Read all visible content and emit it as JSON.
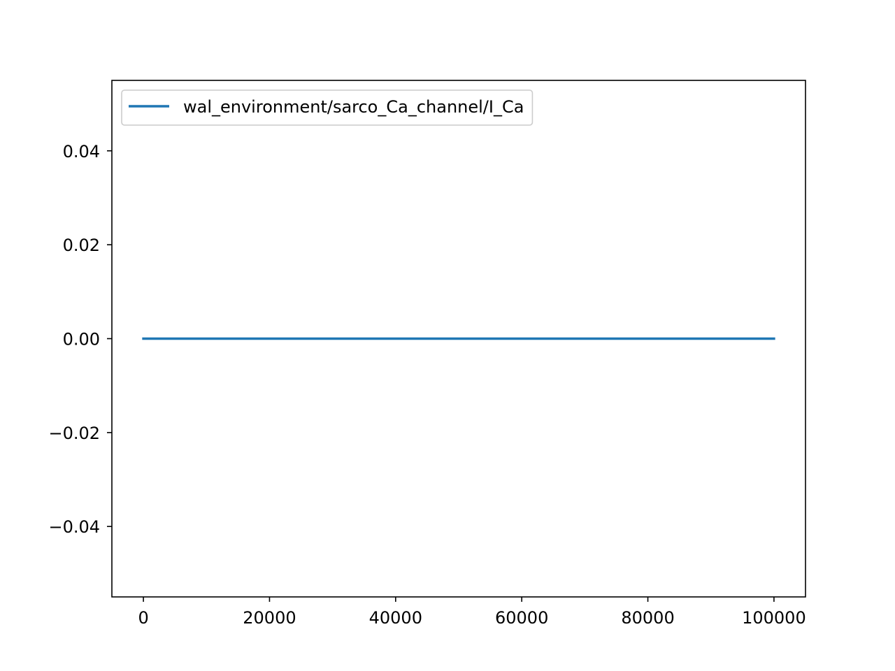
{
  "chart_data": {
    "type": "line",
    "title": "",
    "xlabel": "",
    "ylabel": "",
    "xlim": [
      -5000,
      105000
    ],
    "ylim": [
      -0.055,
      0.055
    ],
    "x_ticks": [
      0,
      20000,
      40000,
      60000,
      80000,
      100000
    ],
    "x_tick_labels": [
      "0",
      "20000",
      "40000",
      "60000",
      "80000",
      "100000"
    ],
    "y_ticks": [
      -0.04,
      -0.02,
      0.0,
      0.02,
      0.04
    ],
    "y_tick_labels": [
      "−0.04",
      "−0.02",
      "0.00",
      "0.02",
      "0.04"
    ],
    "grid": false,
    "legend_position": "upper-left",
    "series": [
      {
        "name": "wal_environment/sarco_Ca_channel/I_Ca",
        "color": "#1f77b4",
        "x": [
          0,
          100000
        ],
        "y": [
          0.0,
          0.0
        ]
      }
    ]
  }
}
